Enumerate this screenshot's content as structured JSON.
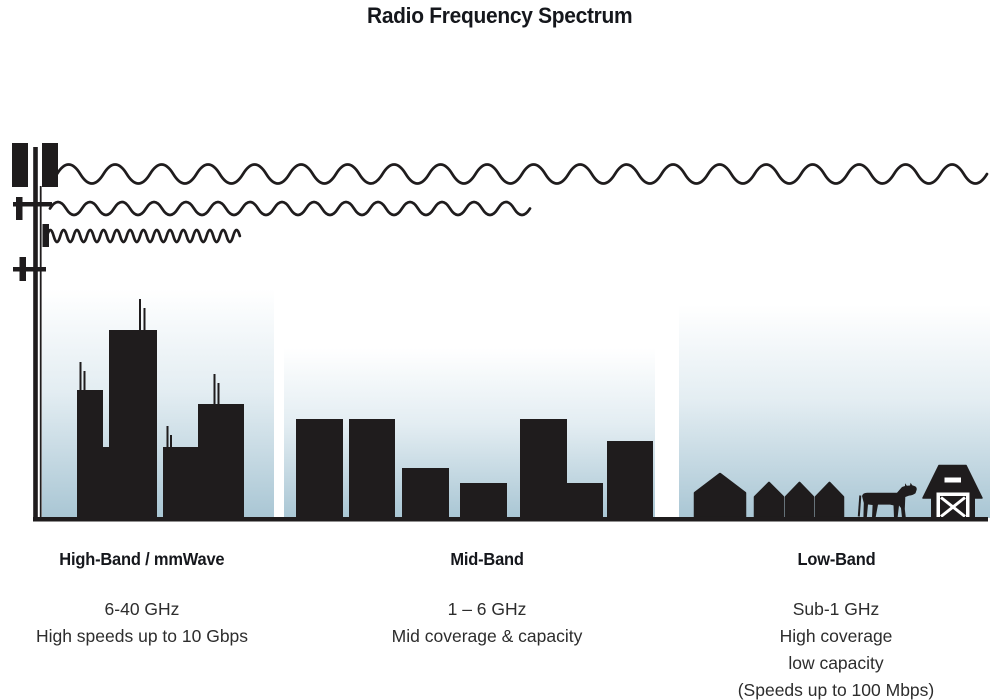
{
  "title": "Radio Frequency Spectrum",
  "bands": [
    {
      "id": "high-band",
      "name": "High-Band / mmWave",
      "frequency": "6-40 GHz",
      "details": [
        "High speeds up to 10 Gbps"
      ],
      "scene": "city-skyscrapers",
      "wave": "short-wavelength-high-frequency"
    },
    {
      "id": "mid-band",
      "name": "Mid-Band",
      "frequency": "1 – 6 GHz",
      "details": [
        "Mid coverage & capacity"
      ],
      "scene": "mid-rise-buildings",
      "wave": "medium-wavelength"
    },
    {
      "id": "low-band",
      "name": "Low-Band",
      "frequency": "Sub-1 GHz",
      "details": [
        "High coverage",
        "low capacity",
        "(Speeds up to 100 Mbps)"
      ],
      "scene": "rural-houses-farm-barn-cow",
      "wave": "long-wavelength"
    }
  ],
  "icons": {
    "tower": "cell-tower-icon",
    "waves": [
      "long-wavelength-wave-icon",
      "medium-wavelength-wave-icon",
      "short-wavelength-wave-icon"
    ],
    "scenes": [
      "city-buildings-icon",
      "house-icon",
      "cow-icon",
      "barn-icon"
    ]
  },
  "colors": {
    "silhouette": "#1f1c1d",
    "sky_top": "#ffffff",
    "sky_mid": "#e3edf2",
    "sky_bottom": "#a9c6d4",
    "heading_text": "#15171c",
    "body_text": "#2d2d2d"
  }
}
